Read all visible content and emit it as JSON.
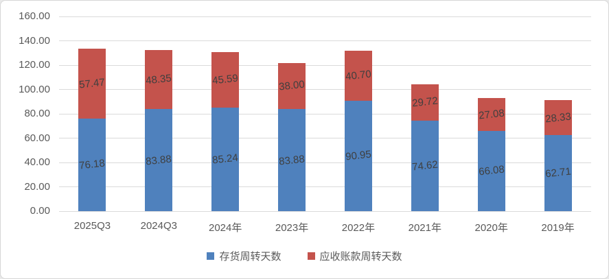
{
  "chart_data": {
    "type": "bar",
    "stacked": true,
    "title": "",
    "xlabel": "",
    "ylabel": "",
    "categories": [
      "2025Q3",
      "2024Q3",
      "2024年",
      "2023年",
      "2022年",
      "2021年",
      "2020年",
      "2019年"
    ],
    "series": [
      {
        "name": "存货周转天数",
        "color": "#4F81BD",
        "values": [
          76.18,
          83.88,
          85.24,
          83.88,
          90.95,
          74.62,
          66.08,
          62.71
        ],
        "labels": [
          "76.18",
          "83.88",
          "85.24",
          "83.88",
          "90.95",
          "74.62",
          "66.08",
          "62.71"
        ]
      },
      {
        "name": "应收账款周转天数",
        "color": "#C4534C",
        "values": [
          57.47,
          48.35,
          45.59,
          38.0,
          40.7,
          29.72,
          27.08,
          28.33
        ],
        "labels": [
          "57.47",
          "48.35",
          "45.59",
          "38.00",
          "40.70",
          "29.72",
          "27.08",
          "28.33"
        ]
      }
    ],
    "ylim": [
      0,
      160
    ],
    "ytick_step": 20,
    "ytick_labels": [
      "0.00",
      "20.00",
      "40.00",
      "60.00",
      "80.00",
      "100.00",
      "120.00",
      "140.00",
      "160.00"
    ],
    "grid": true,
    "legend_position": "bottom",
    "colors": {
      "gridline": "#dadada",
      "axis_text": "#595959",
      "data_label_text": "#3f3f3f",
      "background": "#ffffff",
      "border": "#d6d6d6"
    }
  }
}
